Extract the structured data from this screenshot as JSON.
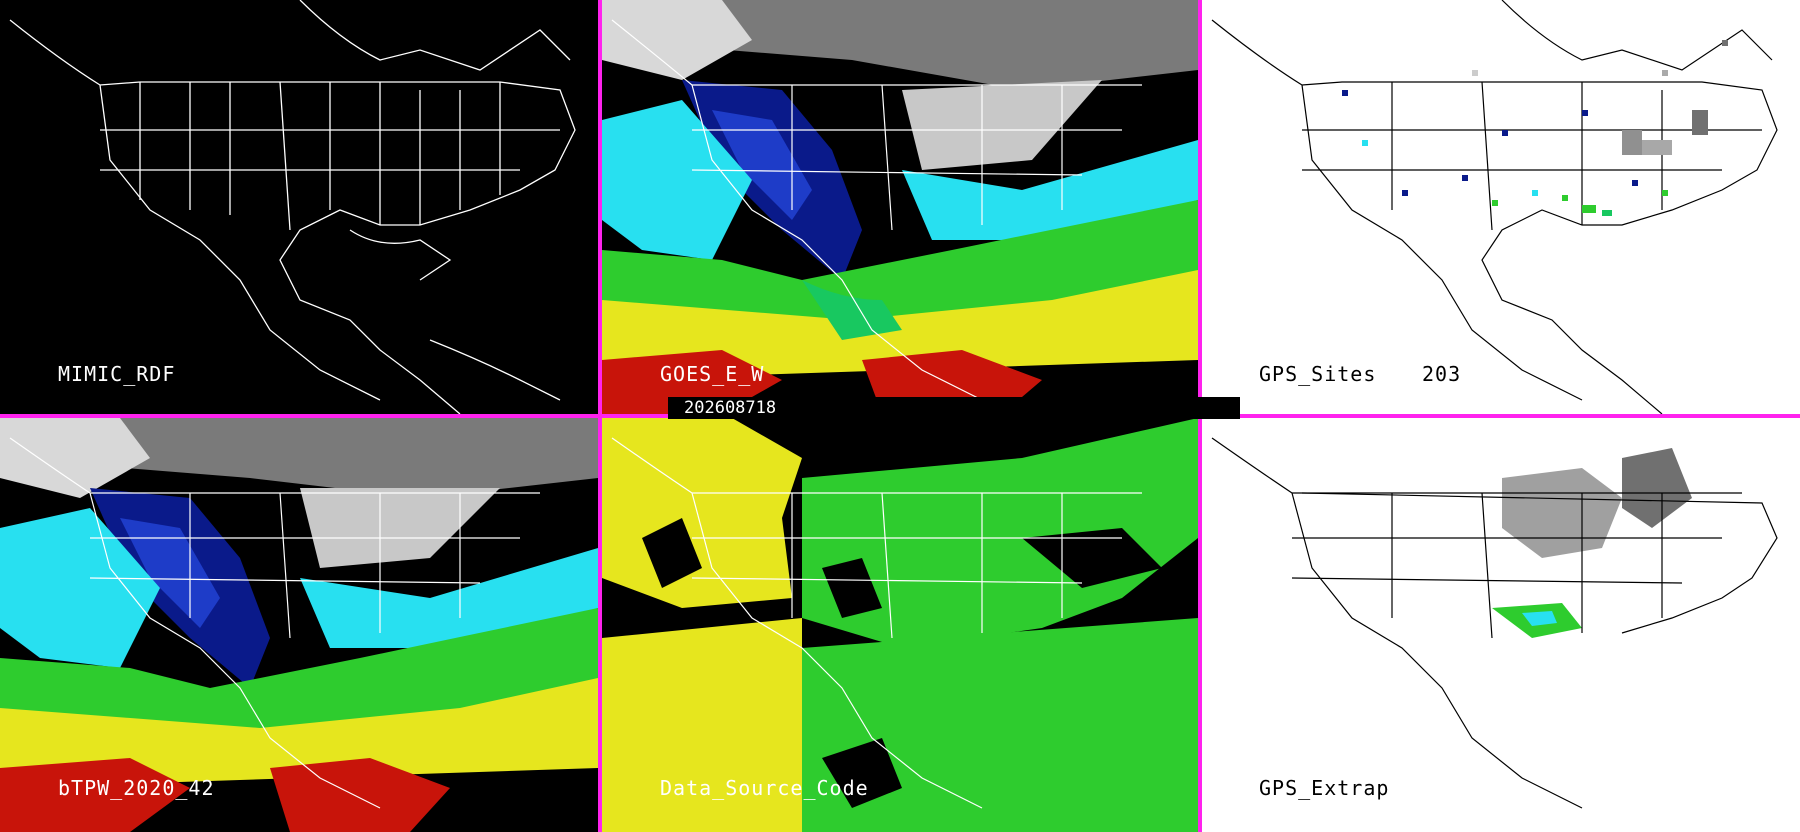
{
  "panels": {
    "p1": {
      "label": "MIMIC_RDF",
      "bg": "#000000",
      "label_color": "#ffffff"
    },
    "p2": {
      "label": "GOES_E_W",
      "bg": "#000000",
      "label_color": "#ffffff"
    },
    "p3": {
      "label": "GPS_Sites",
      "count": "203",
      "bg": "#ffffff",
      "label_color": "#000000"
    },
    "p4": {
      "label": "bTPW_2020_42",
      "bg": "#000000",
      "label_color": "#ffffff"
    },
    "p5": {
      "label": "Data_Source_Code",
      "bg": "#000000",
      "label_color": "#ffffff"
    },
    "p6": {
      "label": "GPS_Extrap",
      "bg": "#ffffff",
      "label_color": "#000000"
    }
  },
  "timestamp": "202608718",
  "colors": {
    "separator": "#ff22ee",
    "tpw_scale": [
      "#b0b0b0",
      "#0a1a8a",
      "#1e3cc8",
      "#28e0f0",
      "#18c860",
      "#2ecc2e",
      "#e6e61e",
      "#c8140a"
    ],
    "source_code": [
      "#e6e61e",
      "#2ecc2e",
      "#000000"
    ]
  }
}
